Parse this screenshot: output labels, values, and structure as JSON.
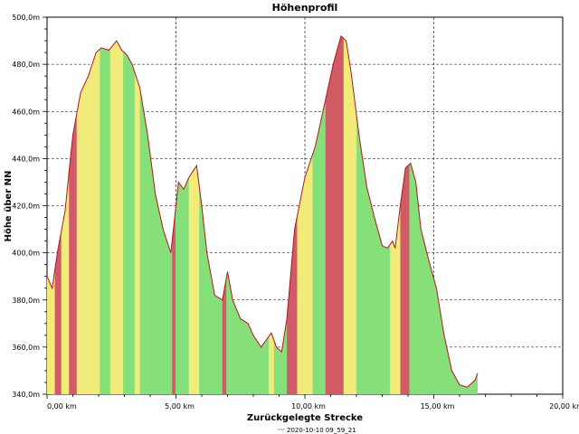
{
  "chart_data": {
    "type": "area",
    "title": "Höhenprofil",
    "xlabel": "Zurückgelegte Strecke",
    "ylabel": "Höhe über NN",
    "xlim": [
      0,
      20
    ],
    "ylim": [
      340,
      500
    ],
    "x_ticks": [
      0,
      5,
      10,
      15,
      20
    ],
    "x_tick_labels": [
      "0,00 km",
      "5,00 km",
      "10,00 km",
      "15,00 km",
      "20,00 km"
    ],
    "y_ticks": [
      340,
      360,
      380,
      400,
      420,
      440,
      460,
      480,
      500
    ],
    "y_tick_labels": [
      "340,0m",
      "360,0m",
      "380,0m",
      "400,0m",
      "420,0m",
      "440,0m",
      "460,0m",
      "480,0m",
      "500,0m"
    ],
    "grid": true,
    "legend_position": "bottom",
    "legend_label": "2020-10-10 09_59_21",
    "series": [
      {
        "name": "2020-10-10 09_59_21",
        "x": [
          0.0,
          0.2,
          0.4,
          0.7,
          1.0,
          1.3,
          1.6,
          1.9,
          2.1,
          2.4,
          2.7,
          2.9,
          3.1,
          3.3,
          3.6,
          3.9,
          4.2,
          4.5,
          4.8,
          4.95,
          5.1,
          5.3,
          5.5,
          5.8,
          6.0,
          6.2,
          6.5,
          6.8,
          7.0,
          7.2,
          7.5,
          7.8,
          8.0,
          8.3,
          8.7,
          8.9,
          9.1,
          9.3,
          9.6,
          10.0,
          10.4,
          10.8,
          11.1,
          11.4,
          11.6,
          11.8,
          12.1,
          12.4,
          12.7,
          13.0,
          13.2,
          13.4,
          13.5,
          13.7,
          13.9,
          14.1,
          14.3,
          14.5,
          14.8,
          15.1,
          15.4,
          15.7,
          16.0,
          16.3,
          16.6,
          16.7
        ],
        "y": [
          390,
          385,
          400,
          418,
          450,
          468,
          475,
          485,
          487,
          486,
          490,
          486,
          484,
          480,
          470,
          450,
          425,
          410,
          400,
          415,
          430,
          427,
          432,
          437,
          420,
          400,
          382,
          380,
          392,
          380,
          372,
          370,
          365,
          360,
          366,
          360,
          358,
          372,
          410,
          432,
          445,
          465,
          480,
          492,
          490,
          476,
          450,
          428,
          415,
          403,
          402,
          405,
          402,
          420,
          436,
          438,
          430,
          410,
          397,
          385,
          365,
          350,
          344,
          343,
          346,
          349
        ],
        "slope_zones": [
          {
            "from": 0.0,
            "to": 0.3,
            "grade": "medium"
          },
          {
            "from": 0.3,
            "to": 0.55,
            "grade": "high"
          },
          {
            "from": 0.55,
            "to": 0.85,
            "grade": "medium"
          },
          {
            "from": 0.85,
            "to": 1.15,
            "grade": "high"
          },
          {
            "from": 1.15,
            "to": 1.55,
            "grade": "medium"
          },
          {
            "from": 1.55,
            "to": 2.05,
            "grade": "medium"
          },
          {
            "from": 2.05,
            "to": 2.45,
            "grade": "low"
          },
          {
            "from": 2.45,
            "to": 2.95,
            "grade": "medium"
          },
          {
            "from": 2.95,
            "to": 3.4,
            "grade": "low"
          },
          {
            "from": 3.4,
            "to": 3.6,
            "grade": "medium"
          },
          {
            "from": 3.6,
            "to": 4.85,
            "grade": "low"
          },
          {
            "from": 4.85,
            "to": 4.98,
            "grade": "high"
          },
          {
            "from": 4.98,
            "to": 5.5,
            "grade": "low"
          },
          {
            "from": 5.5,
            "to": 5.9,
            "grade": "medium"
          },
          {
            "from": 5.9,
            "to": 6.8,
            "grade": "low"
          },
          {
            "from": 6.8,
            "to": 6.95,
            "grade": "high"
          },
          {
            "from": 6.95,
            "to": 8.6,
            "grade": "low"
          },
          {
            "from": 8.6,
            "to": 8.8,
            "grade": "medium"
          },
          {
            "from": 8.8,
            "to": 9.3,
            "grade": "low"
          },
          {
            "from": 9.3,
            "to": 9.7,
            "grade": "high"
          },
          {
            "from": 9.7,
            "to": 10.3,
            "grade": "medium"
          },
          {
            "from": 10.3,
            "to": 10.8,
            "grade": "low"
          },
          {
            "from": 10.8,
            "to": 11.5,
            "grade": "high"
          },
          {
            "from": 11.5,
            "to": 12.0,
            "grade": "medium"
          },
          {
            "from": 12.0,
            "to": 13.3,
            "grade": "low"
          },
          {
            "from": 13.3,
            "to": 13.7,
            "grade": "medium"
          },
          {
            "from": 13.7,
            "to": 14.05,
            "grade": "high"
          },
          {
            "from": 14.05,
            "to": 16.7,
            "grade": "low"
          }
        ]
      }
    ],
    "colors": {
      "low": "#86e07a",
      "medium": "#f1ec7a",
      "high": "#d05a66",
      "line": "#b01818",
      "grid": "#000000",
      "legend_line": "#9a9a9a"
    }
  }
}
